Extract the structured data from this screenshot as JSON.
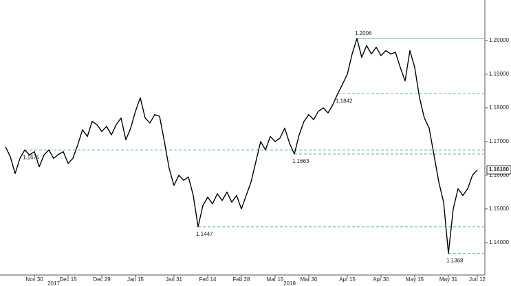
{
  "chart_data": {
    "type": "line",
    "categories": [
      null,
      null,
      null,
      null,
      null,
      null,
      "Nov 30",
      null,
      null,
      null,
      null,
      null,
      null,
      "Dec 15",
      null,
      null,
      null,
      null,
      null,
      null,
      "Dec 29",
      null,
      null,
      null,
      null,
      null,
      null,
      "Jan 15",
      null,
      null,
      null,
      null,
      null,
      null,
      null,
      "Jan 31",
      null,
      null,
      null,
      null,
      null,
      null,
      "Feb 14",
      null,
      null,
      null,
      null,
      null,
      null,
      "Feb 28",
      null,
      null,
      null,
      null,
      null,
      null,
      "Mar 15",
      null,
      null,
      null,
      null,
      null,
      null,
      "Mar 30",
      null,
      null,
      null,
      null,
      null,
      null,
      null,
      "Apr 15",
      null,
      null,
      null,
      null,
      null,
      null,
      "Apr 30",
      null,
      null,
      null,
      null,
      null,
      null,
      "May 15",
      null,
      null,
      null,
      null,
      null,
      null,
      "May 31",
      null,
      null,
      null,
      null,
      null,
      "Jun 12"
    ],
    "series": [
      {
        "color": "#000000",
        "values": [
          1.1684,
          1.1655,
          1.1605,
          1.165,
          1.1675,
          1.166,
          1.167,
          1.1625,
          1.166,
          1.1675,
          1.165,
          1.1662,
          1.167,
          1.1635,
          1.165,
          1.169,
          1.1735,
          1.1715,
          1.176,
          1.175,
          1.173,
          1.1745,
          1.172,
          1.175,
          1.177,
          1.1705,
          1.174,
          1.179,
          1.183,
          1.177,
          1.1755,
          1.178,
          1.1775,
          1.17,
          1.162,
          1.157,
          1.16,
          1.1585,
          1.1595,
          1.154,
          1.1447,
          1.151,
          1.1535,
          1.1515,
          1.1545,
          1.1525,
          1.155,
          1.152,
          1.154,
          1.15,
          1.154,
          1.158,
          1.164,
          1.17,
          1.1675,
          1.1715,
          1.17,
          1.171,
          1.174,
          1.1695,
          1.1663,
          1.172,
          1.176,
          1.178,
          1.1765,
          1.179,
          1.18,
          1.1785,
          1.181,
          1.1842,
          1.187,
          1.19,
          1.196,
          1.2006,
          1.195,
          1.1985,
          1.196,
          1.198,
          1.1955,
          1.197,
          1.196,
          1.1965,
          1.192,
          1.188,
          1.197,
          1.192,
          1.183,
          1.177,
          1.174,
          1.166,
          1.158,
          1.152,
          1.1368,
          1.15,
          1.156,
          1.154,
          1.156,
          1.16,
          1.1616
        ]
      }
    ],
    "levels": [
      1.2006,
      1.1842,
      1.1675,
      1.1663,
      1.1447,
      1.1368
    ],
    "last_value_label": "1.16160",
    "year_labels": [
      "2017",
      "2018"
    ],
    "ylim": [
      1.131,
      1.211
    ],
    "yticks": [
      {
        "value": 1.2,
        "label": "1.20000"
      },
      {
        "value": 1.19,
        "label": "1.19000"
      },
      {
        "value": 1.18,
        "label": "1.18000"
      },
      {
        "value": 1.17,
        "label": "1.17000"
      },
      {
        "value": 1.16,
        "label": "1.16000"
      },
      {
        "value": 1.15,
        "label": "1.15000"
      },
      {
        "value": 1.14,
        "label": "1.14000"
      }
    ],
    "level_color": "#5fb3a6"
  }
}
